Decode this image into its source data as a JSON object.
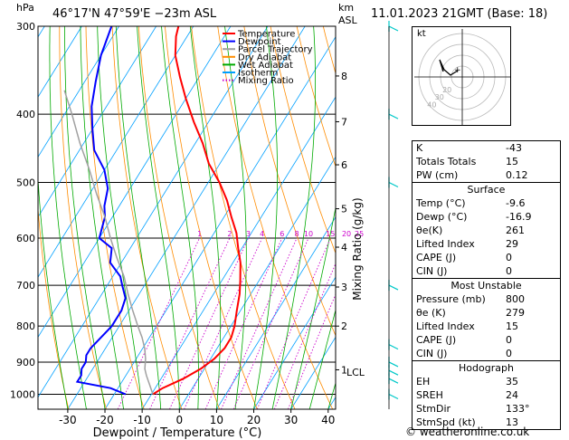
{
  "header": {
    "pressure_unit": "hPa",
    "location": "46°17'N  47°59'E  −23m  ASL",
    "height_unit_top": "km",
    "height_unit_bottom": "ASL",
    "datetime": "11.01.2023  21GMT  (Base: 18)"
  },
  "chart_data": {
    "type": "skew-t",
    "xlabel": "Dewpoint / Temperature (°C)",
    "right_axis_label": "Mixing Ratio (g/kg)",
    "pressure_ticks": [
      300,
      400,
      500,
      600,
      700,
      800,
      900,
      1000
    ],
    "temperature_ticks": [
      -30,
      -20,
      -10,
      0,
      10,
      20,
      30,
      40
    ],
    "xlim": [
      -38,
      42
    ],
    "ylim_hpa": [
      1050,
      300
    ],
    "km_ticks": [
      {
        "km": "1",
        "p": 923
      },
      {
        "km": "2",
        "p": 800
      },
      {
        "km": "3",
        "p": 704
      },
      {
        "km": "4",
        "p": 618
      },
      {
        "km": "5",
        "p": 545
      },
      {
        "km": "6",
        "p": 472
      },
      {
        "km": "7",
        "p": 410
      },
      {
        "km": "8",
        "p": 353
      }
    ],
    "lcl_label": "LCL",
    "lcl_hpa": 930,
    "mixing_ratio_labels": [
      "1",
      "2",
      "3",
      "4",
      "6",
      "8",
      "10",
      "15",
      "20",
      "25"
    ],
    "mixing_ratio_values": [
      1,
      2,
      3,
      4,
      6,
      8,
      10,
      15,
      20,
      25
    ],
    "mixing_ratio_label_hpa": 600,
    "legend": [
      {
        "name": "Temperature",
        "color": "#ff0000",
        "style": "solid"
      },
      {
        "name": "Dewpoint",
        "color": "#0000ff",
        "style": "solid"
      },
      {
        "name": "Parcel Trajectory",
        "color": "#a0a0a0",
        "style": "solid"
      },
      {
        "name": "Dry Adiabat",
        "color": "#ff8c00",
        "style": "solid"
      },
      {
        "name": "Wet Adiabat",
        "color": "#00aa00",
        "style": "solid"
      },
      {
        "name": "Isotherm",
        "color": "#00a0ff",
        "style": "solid"
      },
      {
        "name": "Mixing Ratio",
        "color": "#cc00cc",
        "style": "dotted"
      }
    ],
    "series": [
      {
        "name": "Temperature",
        "color": "#ff0000",
        "points": [
          [
            -9.6,
            1000
          ],
          [
            -8,
            980
          ],
          [
            -4,
            950
          ],
          [
            -1,
            920
          ],
          [
            1,
            890
          ],
          [
            2,
            860
          ],
          [
            2,
            830
          ],
          [
            1,
            800
          ],
          [
            -1,
            760
          ],
          [
            -3,
            720
          ],
          [
            -5,
            690
          ],
          [
            -8,
            650
          ],
          [
            -11,
            620
          ],
          [
            -14,
            590
          ],
          [
            -18,
            560
          ],
          [
            -22,
            530
          ],
          [
            -27,
            500
          ],
          [
            -33,
            470
          ],
          [
            -38,
            440
          ],
          [
            -44,
            410
          ],
          [
            -50,
            380
          ],
          [
            -55,
            355
          ],
          [
            -60,
            330
          ],
          [
            -63,
            310
          ],
          [
            -64,
            300
          ]
        ]
      },
      {
        "name": "Dewpoint",
        "color": "#0000ff",
        "points": [
          [
            -16.9,
            1000
          ],
          [
            -22,
            980
          ],
          [
            -32,
            960
          ],
          [
            -32,
            940
          ],
          [
            -33,
            920
          ],
          [
            -33,
            900
          ],
          [
            -34,
            880
          ],
          [
            -34,
            860
          ],
          [
            -33,
            830
          ],
          [
            -32,
            800
          ],
          [
            -32,
            780
          ],
          [
            -32,
            760
          ],
          [
            -33,
            730
          ],
          [
            -36,
            700
          ],
          [
            -38,
            680
          ],
          [
            -43,
            650
          ],
          [
            -45,
            620
          ],
          [
            -50,
            600
          ],
          [
            -51,
            580
          ],
          [
            -52,
            560
          ],
          [
            -54,
            540
          ],
          [
            -56,
            510
          ],
          [
            -60,
            480
          ],
          [
            -66,
            450
          ],
          [
            -70,
            420
          ],
          [
            -74,
            390
          ],
          [
            -77,
            360
          ],
          [
            -80,
            330
          ],
          [
            -82,
            300
          ]
        ]
      },
      {
        "name": "Parcel Trajectory",
        "color": "#a0a0a0",
        "points": [
          [
            -9.6,
            1000
          ],
          [
            -12,
            970
          ],
          [
            -14.5,
            940
          ],
          [
            -16,
            920
          ],
          [
            -17.5,
            890
          ],
          [
            -19.5,
            860
          ],
          [
            -22,
            830
          ],
          [
            -25,
            800
          ],
          [
            -29,
            760
          ],
          [
            -33,
            720
          ],
          [
            -37,
            680
          ],
          [
            -42,
            640
          ],
          [
            -47,
            600
          ],
          [
            -52,
            560
          ],
          [
            -58,
            520
          ],
          [
            -64,
            480
          ],
          [
            -71,
            440
          ],
          [
            -78,
            400
          ],
          [
            -84,
            370
          ]
        ]
      }
    ]
  },
  "hodograph": {
    "label": "kt",
    "ring_labels": [
      "20",
      "30",
      "40"
    ]
  },
  "indices": [
    {
      "label": "K",
      "value": "-43"
    },
    {
      "label": "Totals Totals",
      "value": "15"
    },
    {
      "label": "PW (cm)",
      "value": "0.12"
    }
  ],
  "surface": {
    "title": "Surface",
    "rows": [
      {
        "label": "Temp (°C)",
        "value": "-9.6"
      },
      {
        "label": "Dewp (°C)",
        "value": "-16.9"
      },
      {
        "label": "θe(K)",
        "value": "261"
      },
      {
        "label": "Lifted Index",
        "value": "29"
      },
      {
        "label": "CAPE (J)",
        "value": "0"
      },
      {
        "label": "CIN (J)",
        "value": "0"
      }
    ]
  },
  "most_unstable": {
    "title": "Most Unstable",
    "rows": [
      {
        "label": "Pressure (mb)",
        "value": "800"
      },
      {
        "label": "θe (K)",
        "value": "279"
      },
      {
        "label": "Lifted Index",
        "value": "15"
      },
      {
        "label": "CAPE (J)",
        "value": "0"
      },
      {
        "label": "CIN (J)",
        "value": "0"
      }
    ]
  },
  "hodograph_table": {
    "title": "Hodograph",
    "rows": [
      {
        "label": "EH",
        "value": "35"
      },
      {
        "label": "SREH",
        "value": "24"
      },
      {
        "label": "StmDir",
        "value": "133°"
      },
      {
        "label": "StmSpd (kt)",
        "value": "13"
      }
    ]
  },
  "footer": "© weatheronline.co.uk",
  "colors": {
    "temperature": "#ff0000",
    "dewpoint": "#0000ff",
    "parcel": "#a0a0a0",
    "dry_adiabat": "#ff8c00",
    "wet_adiabat": "#00aa00",
    "isotherm": "#00a0ff",
    "mixing_ratio": "#cc00cc",
    "wind_barb": "#00c8c8"
  }
}
